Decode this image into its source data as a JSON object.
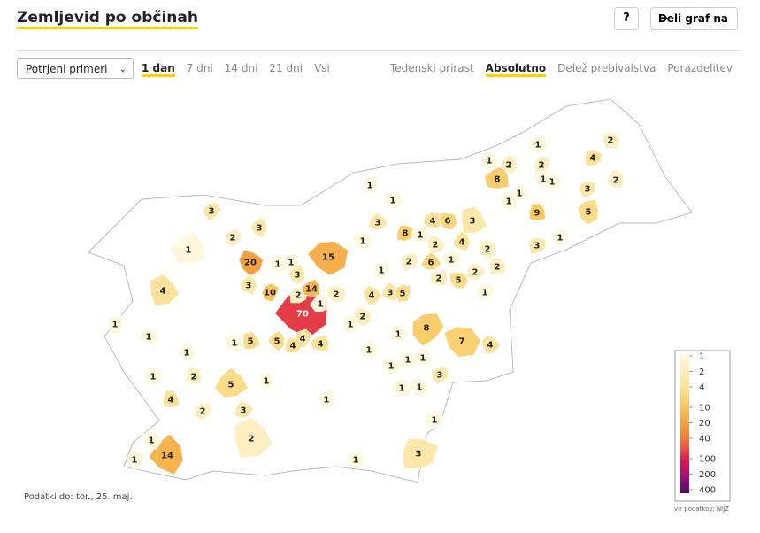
{
  "header": {
    "title": "Zemljevid po občinah",
    "help": "?",
    "share": "Deli graf na"
  },
  "controls": {
    "select": "Potrjeni primeri",
    "periods": [
      "1 dan",
      "7 dni",
      "14 dni",
      "21 dni",
      "Vsi"
    ],
    "active_period": 0,
    "modes": [
      "Tedenski prirast",
      "Absolutno",
      "Delež prebivalstva",
      "Porazdelitev"
    ],
    "active_mode": 1
  },
  "map": {
    "values": [
      1,
      2,
      1,
      2,
      2,
      4,
      8,
      1,
      1,
      2,
      1,
      3,
      1,
      1,
      1,
      9,
      5,
      3,
      3,
      4,
      6,
      3,
      3,
      2,
      8,
      1,
      1,
      2,
      4,
      1,
      3,
      1,
      15,
      20,
      1,
      1,
      2,
      6,
      1,
      2,
      2,
      3,
      1,
      2,
      2,
      5,
      4,
      3,
      10,
      2,
      14,
      2,
      4,
      3,
      5,
      1,
      1,
      70,
      2,
      1,
      1,
      8,
      1,
      1,
      1,
      5,
      5,
      4,
      4,
      4,
      7,
      4,
      1,
      1,
      1,
      1,
      1,
      1,
      2,
      1,
      3,
      5,
      1,
      1,
      4,
      1,
      2,
      3,
      1,
      1,
      2,
      14,
      1,
      3,
      1
    ],
    "scale": {
      "log": true,
      "values": [
        1,
        2,
        4,
        10,
        20,
        40,
        100,
        200,
        400
      ],
      "colors": [
        "#fff8dc",
        "#fdefc0",
        "#fde39a",
        "#f9c45a",
        "#f5a040",
        "#f07838",
        "#e0154f",
        "#a00f73",
        "#4a0d6b"
      ]
    }
  },
  "footer": {
    "date": "Podatki do: tor., 25. maj.",
    "source": "vir podatkov: NIJZ"
  }
}
